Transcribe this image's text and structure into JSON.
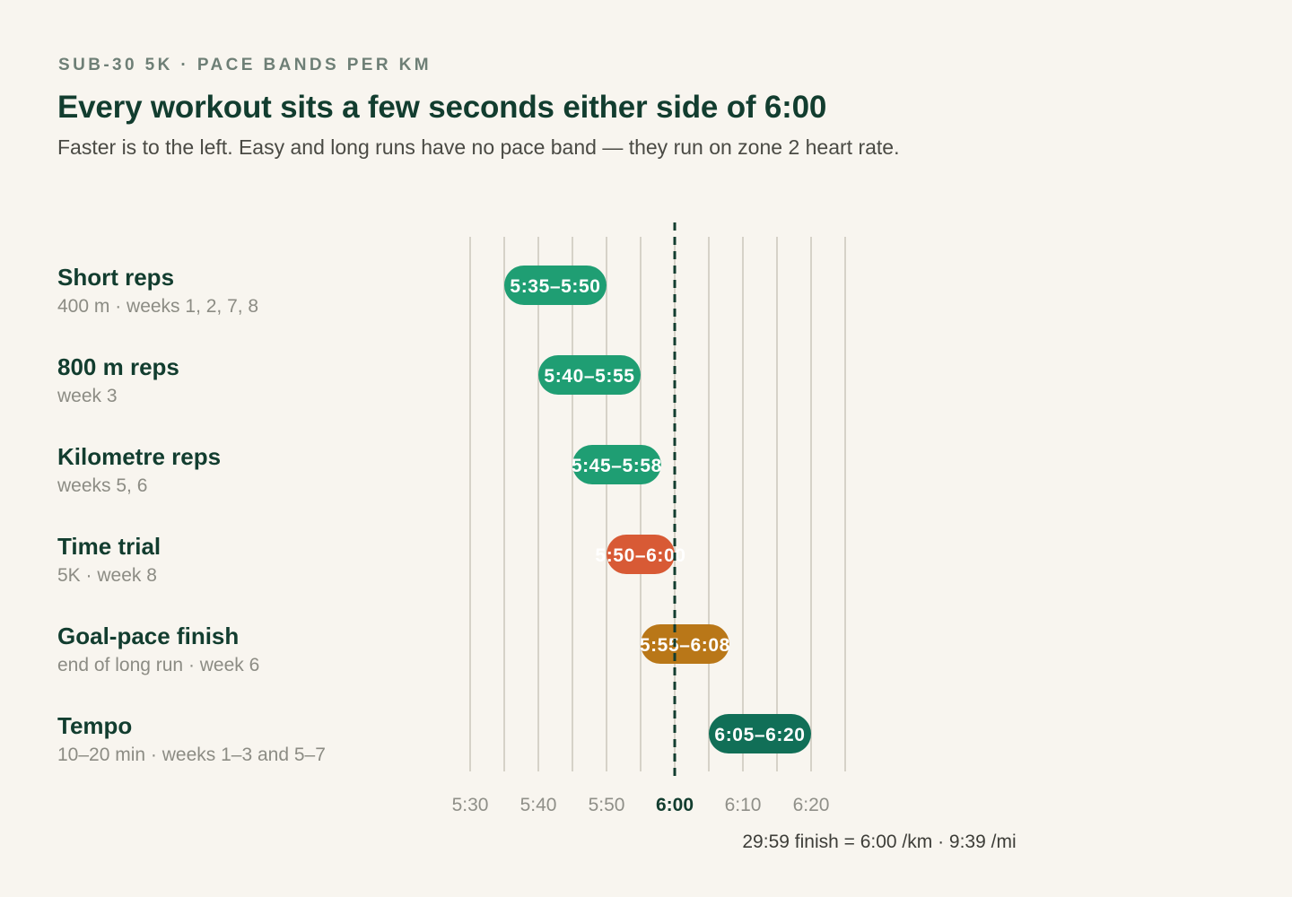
{
  "header": {
    "eyebrow": "SUB-30 5K · PACE BANDS PER KM",
    "title": "Every workout sits a few seconds either side of 6:00",
    "subtitle": "Faster is to the left. Easy and long runs have no pace band — they run on zone 2 heart rate."
  },
  "chart_data": {
    "type": "bar",
    "orientation": "horizontal-range",
    "x_unit": "pace per km",
    "xlim": [
      "5:30",
      "6:25"
    ],
    "tick_labels": [
      "5:30",
      "5:40",
      "5:50",
      "6:00",
      "6:10",
      "6:20"
    ],
    "grid": true,
    "reference_line": {
      "value": "6:00",
      "style": "dashed"
    },
    "rows": [
      {
        "name": "Short reps",
        "detail": "400 m · weeks 1, 2, 7, 8",
        "start": "5:35",
        "end": "5:50",
        "label": "5:35–5:50",
        "color": "#1f9e73"
      },
      {
        "name": "800 m reps",
        "detail": "week 3",
        "start": "5:40",
        "end": "5:55",
        "label": "5:40–5:55",
        "color": "#1f9e73"
      },
      {
        "name": "Kilometre reps",
        "detail": "weeks 5, 6",
        "start": "5:45",
        "end": "5:58",
        "label": "5:45–5:58",
        "color": "#1f9e73"
      },
      {
        "name": "Time trial",
        "detail": "5K · week 8",
        "start": "5:50",
        "end": "6:00",
        "label": "5:50–6:00",
        "color": "#d85a35"
      },
      {
        "name": "Goal-pace finish",
        "detail": "end of long run · week 6",
        "start": "5:55",
        "end": "6:08",
        "label": "5:55–6:08",
        "color": "#b97718"
      },
      {
        "name": "Tempo",
        "detail": "10–20 min · weeks 1–3 and 5–7",
        "start": "6:05",
        "end": "6:20",
        "label": "6:05–6:20",
        "color": "#116f57"
      }
    ]
  },
  "footnote": "29:59 finish = 6:00 /km · 9:39 /mi",
  "colors": {
    "background": "#f8f5ef",
    "heading": "#123d2f",
    "grid": "#d6d2c8",
    "reference": "#123d2f"
  }
}
